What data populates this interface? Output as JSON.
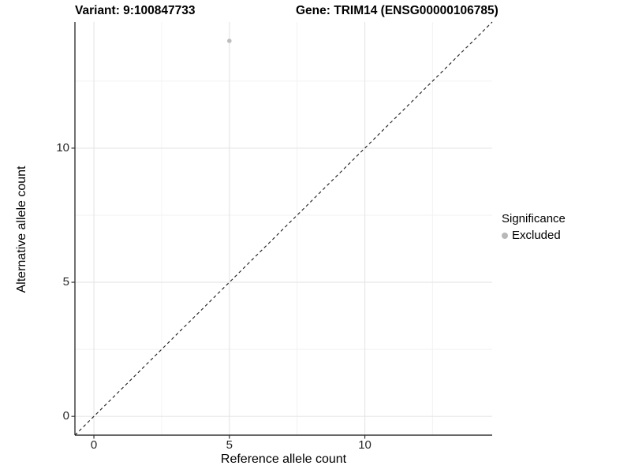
{
  "titles": {
    "variant": "Variant: 9:100847733",
    "gene": "Gene: TRIM14 (ENSG00000106785)"
  },
  "chart_data": {
    "type": "scatter",
    "title": "Variant: 9:100847733   Gene: TRIM14 (ENSG00000106785)",
    "xlabel": "Reference allele count",
    "ylabel": "Alternative allele count",
    "xlim": [
      -0.7,
      14.7
    ],
    "ylim": [
      -0.7,
      14.7
    ],
    "xticks": [
      0,
      5,
      10
    ],
    "yticks": [
      0,
      5,
      10
    ],
    "xtick_labels": [
      "0",
      "5",
      "10"
    ],
    "ytick_labels": [
      "0",
      "5",
      "10"
    ],
    "minor_step": 2.5,
    "grid": true,
    "identity_line": true,
    "points": [
      {
        "x": 5,
        "y": 14,
        "series": "Excluded"
      }
    ],
    "legend": {
      "title": "Significance",
      "position": "right",
      "items": [
        {
          "label": "Excluded",
          "color": "#b8b8b8"
        }
      ]
    },
    "point_color": "#bdbdbd"
  },
  "colors": {
    "background": "#ffffff",
    "axis_line": "#333333",
    "grid_major": "#e6e6e6",
    "grid_minor": "#f2f2f2",
    "identity_line": "#1a1a1a",
    "tick_text": "#262626"
  }
}
